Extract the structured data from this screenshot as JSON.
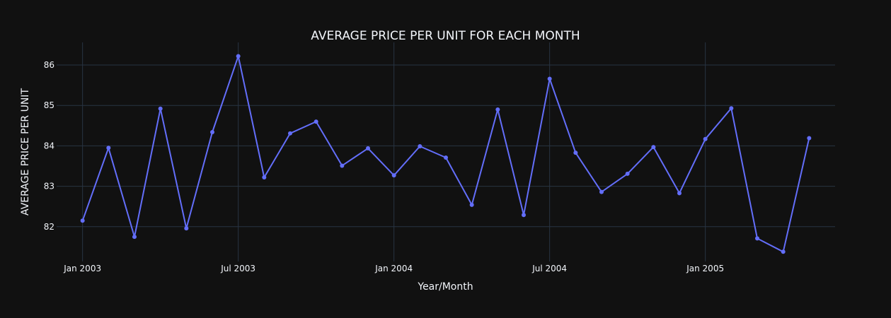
{
  "chart_data": {
    "type": "line",
    "title": "AVERAGE PRICE PER UNIT FOR EACH MONTH",
    "xlabel": "Year/Month",
    "ylabel": "AVERAGE PRICE PER UNIT",
    "x": [
      "2003-01",
      "2003-02",
      "2003-03",
      "2003-04",
      "2003-05",
      "2003-06",
      "2003-07",
      "2003-08",
      "2003-09",
      "2003-10",
      "2003-11",
      "2003-12",
      "2004-01",
      "2004-02",
      "2004-03",
      "2004-04",
      "2004-05",
      "2004-06",
      "2004-07",
      "2004-08",
      "2004-09",
      "2004-10",
      "2004-11",
      "2004-12",
      "2005-01",
      "2005-02",
      "2005-03",
      "2005-04",
      "2005-05"
    ],
    "series": [
      {
        "values": [
          82.15,
          83.95,
          81.75,
          84.92,
          81.96,
          84.34,
          86.22,
          83.22,
          84.31,
          84.6,
          83.51,
          83.94,
          83.27,
          83.99,
          83.71,
          82.54,
          84.9,
          82.29,
          85.66,
          83.83,
          82.86,
          83.31,
          83.97,
          82.83,
          84.17,
          84.93,
          81.71,
          81.38,
          84.19
        ]
      }
    ],
    "x_ticks": [
      "Jan 2003",
      "Jul 2003",
      "Jan 2004",
      "Jul 2004",
      "Jan 2005"
    ],
    "y_ticks": [
      82,
      83,
      84,
      85,
      86
    ],
    "ylim": [
      81.14,
      86.56
    ],
    "grid": true,
    "line_color": "#636efa",
    "background_color": "#111111",
    "grid_color": "#283442",
    "text_color": "#f2f5fa"
  }
}
